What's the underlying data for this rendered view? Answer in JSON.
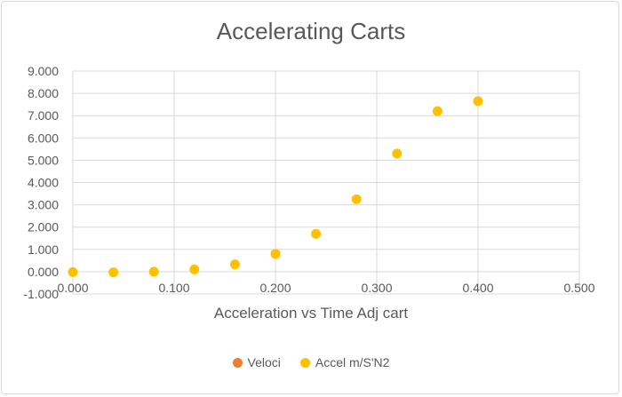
{
  "chart_data": {
    "type": "scatter",
    "title": "Accelerating Carts",
    "xlabel": "Acceleration vs Time Adj cart",
    "ylabel": "",
    "xlim": [
      -0.0,
      0.5
    ],
    "ylim": [
      -1.0,
      9.0
    ],
    "x_ticks": [
      "0.000",
      "0.100",
      "0.200",
      "0.300",
      "0.400",
      "0.500"
    ],
    "y_ticks": [
      "-1.000",
      "0.000",
      "1.000",
      "2.000",
      "3.000",
      "4.000",
      "5.000",
      "6.000",
      "7.000",
      "8.000",
      "9.000"
    ],
    "grid": true,
    "legend_position": "bottom",
    "series": [
      {
        "name": "Veloci",
        "color": "#ed7d31",
        "points": []
      },
      {
        "name": "Accel m/S'N2",
        "color": "#ffc000",
        "points": [
          [
            0.0,
            -0.02
          ],
          [
            0.04,
            -0.03
          ],
          [
            0.08,
            0.0
          ],
          [
            0.12,
            0.1
          ],
          [
            0.16,
            0.33
          ],
          [
            0.2,
            0.8
          ],
          [
            0.24,
            1.7
          ],
          [
            0.28,
            3.25
          ],
          [
            0.32,
            5.3
          ],
          [
            0.36,
            7.2
          ],
          [
            0.4,
            7.65
          ]
        ]
      }
    ]
  }
}
